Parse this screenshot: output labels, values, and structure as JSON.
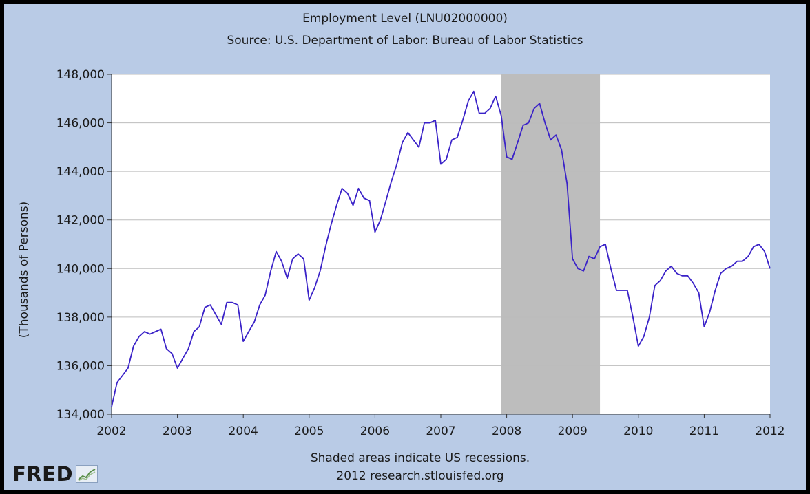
{
  "header": {
    "title": "Employment Level (LNU02000000)",
    "subtitle": "Source: U.S. Department of Labor: Bureau of Labor Statistics"
  },
  "footer": {
    "note": "Shaded areas indicate US recessions.",
    "credit": "2012 research.stlouisfed.org"
  },
  "logo": {
    "text": "FRED"
  },
  "colors": {
    "background": "#b9cbe6",
    "plot_background": "#ffffff",
    "line": "#3a22c8",
    "recession": "#bdbdbd",
    "grid": "#bdbdbd"
  },
  "chart_data": {
    "type": "line",
    "title": "Employment Level (LNU02000000)",
    "subtitle": "Source: U.S. Department of Labor: Bureau of Labor Statistics",
    "xlabel": "",
    "ylabel": "(Thousands of Persons)",
    "xlim": [
      2002,
      2012
    ],
    "ylim": [
      134000,
      148000
    ],
    "x_ticks": [
      "2002",
      "2003",
      "2004",
      "2005",
      "2006",
      "2007",
      "2008",
      "2009",
      "2010",
      "2011",
      "2012"
    ],
    "y_ticks": [
      "134,000",
      "136,000",
      "138,000",
      "140,000",
      "142,000",
      "144,000",
      "146,000",
      "148,000"
    ],
    "grid": true,
    "recessions": [
      {
        "start": 2007.917,
        "end": 2009.417
      }
    ],
    "series": [
      {
        "x": [
          2002.0,
          2002.083,
          2002.167,
          2002.25,
          2002.333,
          2002.417,
          2002.5,
          2002.583,
          2002.667,
          2002.75,
          2002.833,
          2002.917,
          2003.0,
          2003.083,
          2003.167,
          2003.25,
          2003.333,
          2003.417,
          2003.5,
          2003.583,
          2003.667,
          2003.75,
          2003.833,
          2003.917,
          2004.0,
          2004.083,
          2004.167,
          2004.25,
          2004.333,
          2004.417,
          2004.5,
          2004.583,
          2004.667,
          2004.75,
          2004.833,
          2004.917,
          2005.0,
          2005.083,
          2005.167,
          2005.25,
          2005.333,
          2005.417,
          2005.5,
          2005.583,
          2005.667,
          2005.75,
          2005.833,
          2005.917,
          2006.0,
          2006.083,
          2006.167,
          2006.25,
          2006.333,
          2006.417,
          2006.5,
          2006.583,
          2006.667,
          2006.75,
          2006.833,
          2006.917,
          2007.0,
          2007.083,
          2007.167,
          2007.25,
          2007.333,
          2007.417,
          2007.5,
          2007.583,
          2007.667,
          2007.75,
          2007.833,
          2007.917,
          2008.0,
          2008.083,
          2008.167,
          2008.25,
          2008.333,
          2008.417,
          2008.5,
          2008.583,
          2008.667,
          2008.75,
          2008.833,
          2008.917,
          2009.0,
          2009.083,
          2009.167,
          2009.25,
          2009.333,
          2009.417,
          2009.5,
          2009.583,
          2009.667,
          2009.75,
          2009.833,
          2009.917,
          2010.0,
          2010.083,
          2010.167,
          2010.25,
          2010.333,
          2010.417,
          2010.5,
          2010.583,
          2010.667,
          2010.75,
          2010.833,
          2010.917,
          2011.0,
          2011.083,
          2011.167,
          2011.25,
          2011.333,
          2011.417,
          2011.5,
          2011.583,
          2011.667,
          2011.75,
          2011.833,
          2011.917,
          2012.0
        ],
        "values": [
          134300,
          135300,
          135600,
          135900,
          136800,
          137200,
          137400,
          137300,
          137400,
          137500,
          136700,
          136500,
          135900,
          136300,
          136700,
          137400,
          137600,
          138400,
          138500,
          138100,
          137700,
          138600,
          138600,
          138500,
          137000,
          137400,
          137800,
          138500,
          138900,
          139900,
          140700,
          140300,
          139600,
          140400,
          140600,
          140400,
          138700,
          139200,
          139900,
          140900,
          141800,
          142600,
          143300,
          143100,
          142600,
          143300,
          142900,
          142800,
          141500,
          142000,
          142800,
          143600,
          144300,
          145200,
          145600,
          145300,
          145000,
          146000,
          146000,
          146100,
          144300,
          144500,
          145300,
          145400,
          146100,
          146900,
          147300,
          146400,
          146400,
          146600,
          147100,
          146300,
          144600,
          144500,
          145200,
          145900,
          146000,
          146600,
          146800,
          146000,
          145300,
          145500,
          144900,
          143500,
          140400,
          140000,
          139900,
          140500,
          140400,
          140900,
          141000,
          140000,
          139100,
          139100,
          139100,
          138000,
          136800,
          137200,
          138000,
          139300,
          139500,
          139900,
          140100,
          139800,
          139700,
          139700,
          139400,
          139000,
          137600,
          138200,
          139100,
          139800,
          140000,
          140100,
          140300,
          140300,
          140500,
          140900,
          141000,
          140700,
          140000
        ]
      }
    ]
  }
}
